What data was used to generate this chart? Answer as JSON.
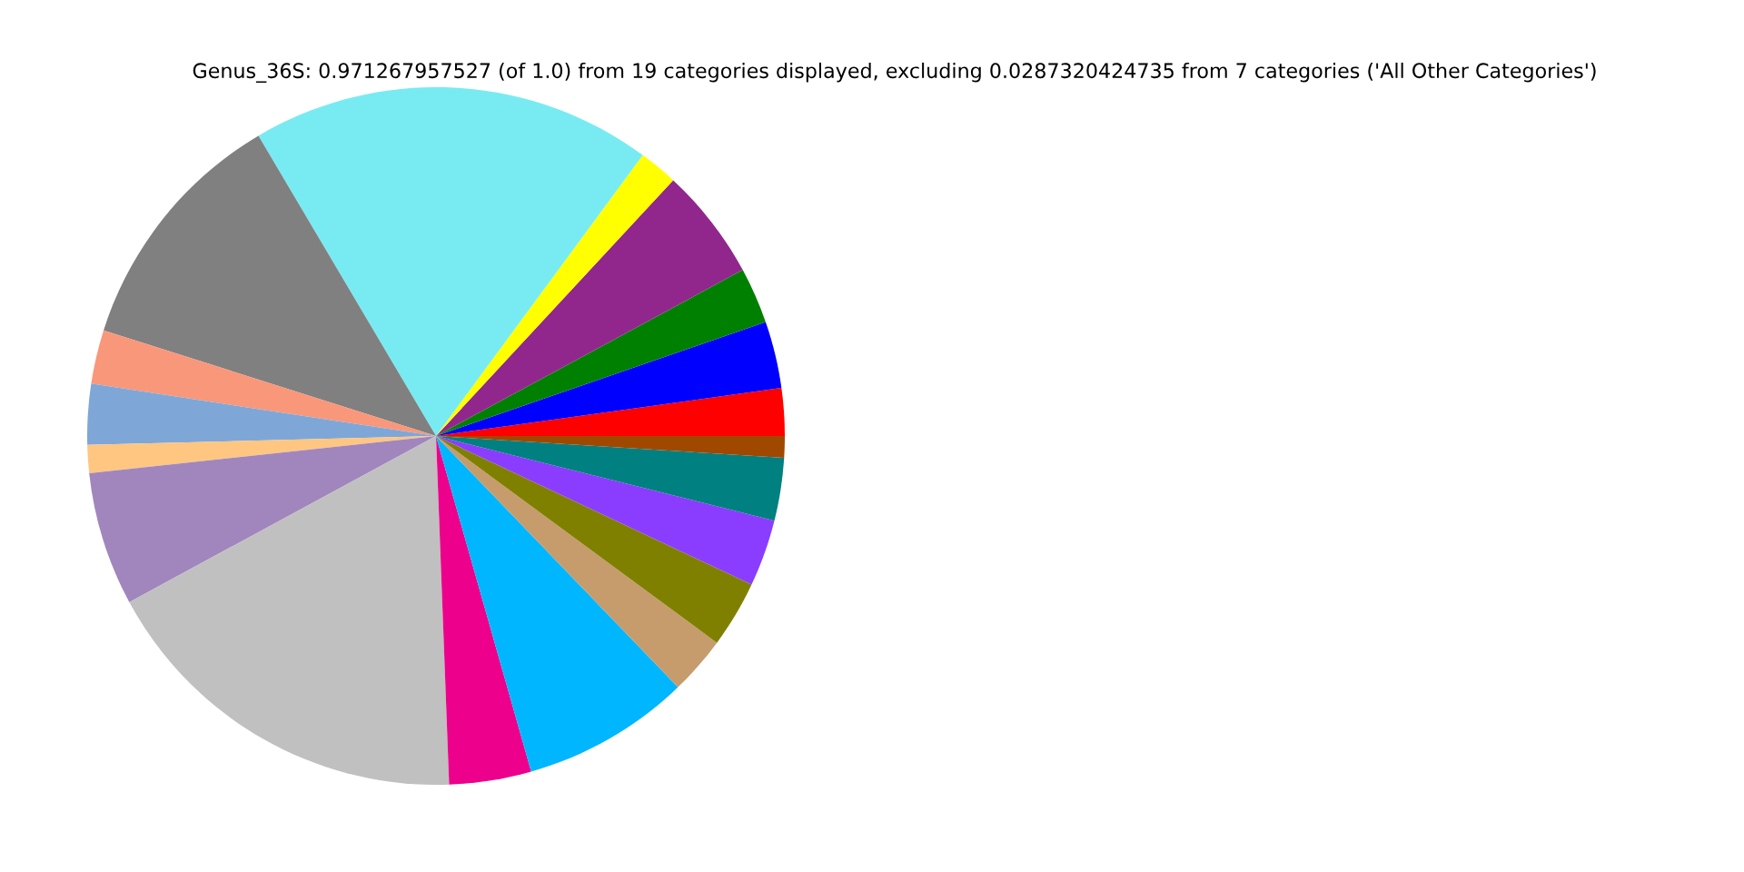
{
  "chart_data": {
    "type": "pie",
    "title": "Genus_36S: 0.971267957527 (of 1.0) from 19 categories displayed, excluding 0.0287320424735 from 7 categories ('All Other Categories')",
    "categories": [
      null,
      null,
      null,
      null,
      null,
      null,
      null,
      null,
      null,
      null,
      null,
      null,
      null,
      null,
      null,
      null,
      null,
      null,
      null
    ],
    "values": [
      2.2,
      3.1,
      2.6,
      5.2,
      1.8,
      18.6,
      11.6,
      2.5,
      2.8,
      1.3,
      6.2,
      17.7,
      3.8,
      7.8,
      2.7,
      3.1,
      3.1,
      2.9,
      1.0
    ],
    "colors": [
      "#ff0000",
      "#0000ff",
      "#008000",
      "#91278d",
      "#ffff00",
      "#78ebf2",
      "#808080",
      "#f9977a",
      "#7ea7d8",
      "#ffc682",
      "#a186be",
      "#c0c0c0",
      "#ec008c",
      "#00b6ff",
      "#c69c6d",
      "#808000",
      "#8b3dff",
      "#008080",
      "#a04800"
    ]
  }
}
